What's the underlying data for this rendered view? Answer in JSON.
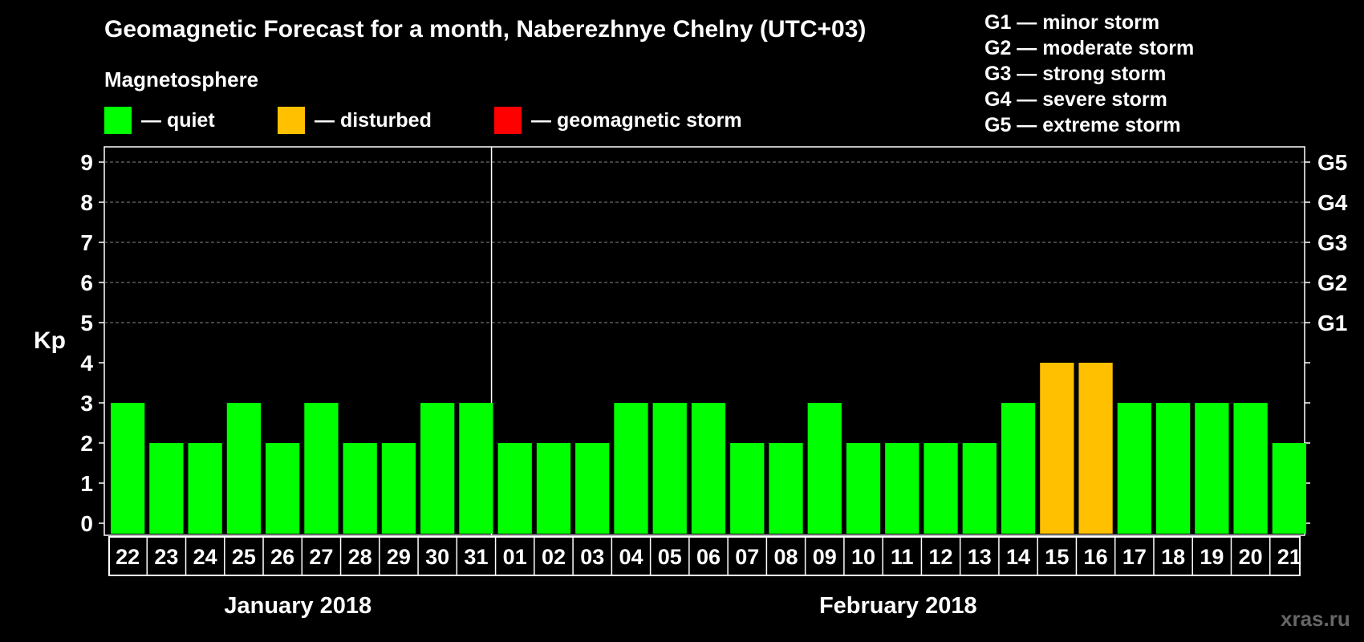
{
  "title": "Geomagnetic Forecast for a month, Naberezhnye Chelny (UTC+03)",
  "subtitle": "Magnetosphere",
  "legend": [
    {
      "label": "— quiet",
      "color": "#00ff00"
    },
    {
      "label": "— disturbed",
      "color": "#ffc000"
    },
    {
      "label": "— geomagnetic storm",
      "color": "#ff0000"
    }
  ],
  "storm_scale": [
    "G1 — minor storm",
    "G2 — moderate storm",
    "G3 — strong storm",
    "G4 — severe storm",
    "G5 — extreme storm"
  ],
  "watermark": "xras.ru",
  "colors": {
    "quiet": "#00ff00",
    "disturbed": "#ffc000",
    "storm": "#ff0000"
  },
  "chart_data": {
    "type": "bar",
    "title": "Geomagnetic Forecast for a month, Naberezhnye Chelny (UTC+03)",
    "ylabel": "Kp",
    "ylim": [
      0,
      9
    ],
    "yticks": [
      0,
      1,
      2,
      3,
      4,
      5,
      6,
      7,
      8,
      9
    ],
    "right_axis_labels": [
      {
        "kp": 5,
        "label": "G1"
      },
      {
        "kp": 6,
        "label": "G2"
      },
      {
        "kp": 7,
        "label": "G3"
      },
      {
        "kp": 8,
        "label": "G4"
      },
      {
        "kp": 9,
        "label": "G5"
      }
    ],
    "categories": [
      "22",
      "23",
      "24",
      "25",
      "26",
      "27",
      "28",
      "29",
      "30",
      "31",
      "01",
      "02",
      "03",
      "04",
      "05",
      "06",
      "07",
      "08",
      "09",
      "10",
      "11",
      "12",
      "13",
      "14",
      "15",
      "16",
      "17",
      "18",
      "19",
      "20",
      "21"
    ],
    "values": [
      3,
      2,
      2,
      3,
      2,
      3,
      2,
      2,
      3,
      3,
      2,
      2,
      2,
      3,
      3,
      3,
      2,
      2,
      3,
      2,
      2,
      2,
      2,
      3,
      4,
      4,
      3,
      3,
      3,
      3,
      2
    ],
    "status": [
      "quiet",
      "quiet",
      "quiet",
      "quiet",
      "quiet",
      "quiet",
      "quiet",
      "quiet",
      "quiet",
      "quiet",
      "quiet",
      "quiet",
      "quiet",
      "quiet",
      "quiet",
      "quiet",
      "quiet",
      "quiet",
      "quiet",
      "quiet",
      "quiet",
      "quiet",
      "quiet",
      "quiet",
      "disturbed",
      "disturbed",
      "quiet",
      "quiet",
      "quiet",
      "quiet",
      "quiet"
    ],
    "months": [
      {
        "label": "January 2018",
        "start": 0,
        "end": 9
      },
      {
        "label": "February 2018",
        "start": 10,
        "end": 30
      }
    ]
  }
}
